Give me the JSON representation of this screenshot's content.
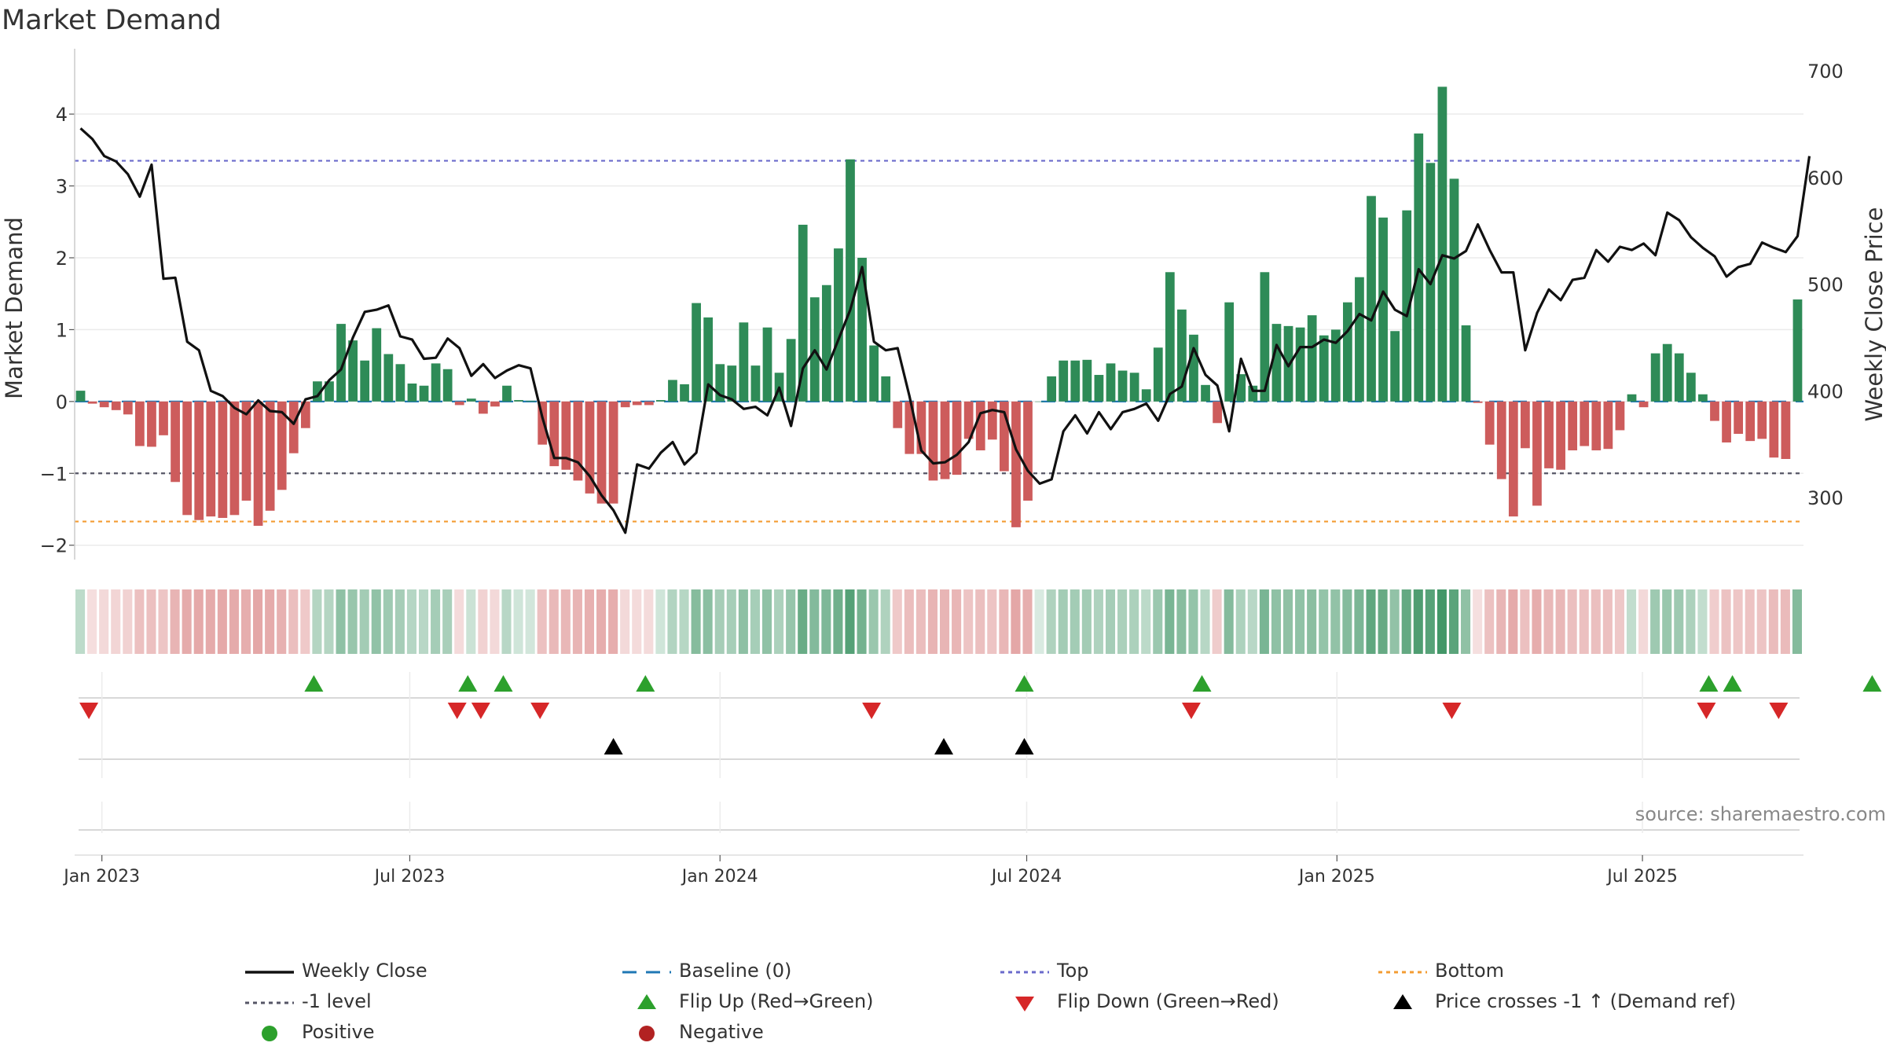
{
  "title": "Market Demand",
  "source_text": "source: sharemaestro.com",
  "colors": {
    "positive_bar": "#2e8b57",
    "negative_bar": "#cd5c5c",
    "price_line": "#111111",
    "baseline": "#1f77b4",
    "top": "#6a6acb",
    "bottom": "#f39c33",
    "minus1": "#555566",
    "flip_up": "#2ca02c",
    "flip_down": "#d62728",
    "cross": "#000000",
    "positive_dot": "#2ca02c",
    "negative_dot": "#b22222"
  },
  "chart_data": {
    "type": "bar",
    "title": "Market Demand",
    "ylabel_left": "Market Demand",
    "ylabel_right": "Weekly Close Price",
    "ylim_left": [
      -2.2,
      4.8
    ],
    "ylim_right": [
      234,
      700
    ],
    "yticks_left": [
      "4",
      "3",
      "2",
      "1",
      "0",
      "−1",
      "−2"
    ],
    "yticks_left_values": [
      4,
      3,
      2,
      1,
      0,
      -1,
      -2
    ],
    "yticks_right": [
      "700",
      "600",
      "500",
      "400",
      "300"
    ],
    "yticks_right_values": [
      700,
      600,
      500,
      400,
      300
    ],
    "xtick_labels": [
      "Jan 2023",
      "Jul 2023",
      "Jan 2024",
      "Jul 2024",
      "Jan 2025",
      "Jul 2025"
    ],
    "xtick_weeks": [
      2.3,
      28.3,
      54.5,
      80.4,
      106.6,
      132.4
    ],
    "start_week_label": "2022-12-23",
    "reference_lines": {
      "top": 3.35,
      "minus1": -1.0,
      "bottom": -1.67,
      "baseline": 0
    },
    "demand": [
      0.15,
      -0.03,
      -0.08,
      -0.12,
      -0.18,
      -0.62,
      -0.63,
      -0.47,
      -1.12,
      -1.58,
      -1.65,
      -1.6,
      -1.62,
      -1.58,
      -1.38,
      -1.73,
      -1.52,
      -1.23,
      -0.72,
      -0.37,
      0.28,
      0.28,
      1.08,
      0.85,
      0.57,
      1.02,
      0.66,
      0.52,
      0.25,
      0.22,
      0.53,
      0.45,
      -0.05,
      0.04,
      -0.17,
      -0.07,
      0.22,
      0.02,
      0.01,
      -0.6,
      -0.9,
      -0.95,
      -1.1,
      -1.28,
      -1.42,
      -1.42,
      -0.08,
      -0.05,
      -0.05,
      0.02,
      0.3,
      0.24,
      1.37,
      1.17,
      0.52,
      0.5,
      1.1,
      0.5,
      1.03,
      0.4,
      0.87,
      2.46,
      1.45,
      1.62,
      2.13,
      3.37,
      2.0,
      0.78,
      0.35,
      -0.37,
      -0.73,
      -0.73,
      -1.1,
      -1.08,
      -1.02,
      -0.52,
      -0.68,
      -0.53,
      -0.97,
      -1.75,
      -1.38,
      0.0,
      0.35,
      0.57,
      0.57,
      0.58,
      0.37,
      0.53,
      0.43,
      0.4,
      0.17,
      0.75,
      1.8,
      1.28,
      0.93,
      0.23,
      -0.3,
      1.38,
      0.38,
      0.22,
      1.8,
      1.08,
      1.05,
      1.03,
      1.2,
      0.92,
      1.0,
      1.38,
      1.73,
      2.86,
      2.56,
      0.98,
      2.66,
      3.73,
      3.32,
      4.38,
      3.1,
      1.06,
      -0.02,
      -0.6,
      -1.08,
      -1.6,
      -0.65,
      -1.45,
      -0.93,
      -0.95,
      -0.68,
      -0.62,
      -0.68,
      -0.66,
      -0.4,
      0.1,
      -0.08,
      0.67,
      0.8,
      0.67,
      0.4,
      0.1,
      -0.27,
      -0.57,
      -0.45,
      -0.55,
      -0.52,
      -0.78,
      -0.8,
      1.42
    ],
    "weekly_close": [
      646,
      636,
      620,
      615,
      603,
      582,
      612,
      505,
      506,
      446,
      438,
      400,
      395,
      384,
      378,
      391,
      381,
      380,
      369,
      392,
      395,
      410,
      420,
      450,
      474,
      476,
      480,
      451,
      448,
      430,
      431,
      449,
      440,
      414,
      425,
      412,
      419,
      424,
      421,
      375,
      337,
      337,
      333,
      320,
      302,
      288,
      267,
      331,
      327,
      342,
      352,
      331,
      342,
      406,
      396,
      392,
      383,
      385,
      377,
      403,
      367,
      421,
      438,
      420,
      448,
      476,
      516,
      446,
      438,
      440,
      395,
      344,
      332,
      333,
      340,
      352,
      379,
      382,
      380,
      345,
      325,
      313,
      317,
      362,
      377,
      360,
      380,
      364,
      380,
      383,
      388,
      372,
      397,
      404,
      440,
      415,
      405,
      362,
      430,
      400,
      400,
      443,
      423,
      441,
      441,
      448,
      445,
      456,
      472,
      466,
      493,
      476,
      470,
      514,
      500,
      527,
      524,
      531,
      556,
      532,
      511,
      511,
      438,
      473,
      495,
      485,
      504,
      506,
      532,
      521,
      535,
      532,
      538,
      527,
      567,
      560,
      544,
      534,
      526,
      507,
      516,
      519,
      539,
      534,
      530,
      545,
      620
    ],
    "tile_shades": [
      0.15,
      -0.03,
      -0.08,
      -0.12,
      -0.18,
      -0.62,
      -0.63,
      -0.47,
      -1.12,
      -1.58,
      -1.65,
      -1.6,
      -1.62,
      -1.58,
      -1.38,
      -1.73,
      -1.52,
      -1.23,
      -0.72,
      -0.37,
      0.28,
      0.28,
      1.08,
      0.85,
      0.57,
      1.02,
      0.66,
      0.52,
      0.25,
      0.22,
      0.53,
      0.45,
      -0.05,
      0.04,
      -0.17,
      -0.07,
      0.22,
      0.02,
      0.01,
      -0.6,
      -0.9,
      -0.95,
      -1.1,
      -1.28,
      -1.42,
      -1.42,
      -0.08,
      -0.05,
      -0.05,
      0.02,
      0.3,
      0.24,
      1.37,
      1.17,
      0.52,
      0.5,
      1.1,
      0.5,
      1.03,
      0.4,
      0.87,
      2.46,
      1.45,
      1.62,
      2.13,
      3.37,
      2.0,
      0.78,
      0.35,
      -0.37,
      -0.73,
      -0.73,
      -1.1,
      -1.08,
      -1.02,
      -0.52,
      -0.68,
      -0.53,
      -0.97,
      -1.75,
      -1.38,
      0.0,
      0.35,
      0.57,
      0.57,
      0.58,
      0.37,
      0.53,
      0.43,
      0.4,
      0.17,
      0.75,
      1.8,
      1.28,
      0.93,
      0.23,
      -0.3,
      1.38,
      0.38,
      0.22,
      1.8,
      1.08,
      1.05,
      1.03,
      1.2,
      0.92,
      1.0,
      1.38,
      1.73,
      2.86,
      2.56,
      0.98,
      2.66,
      3.73,
      3.32,
      4.38,
      3.1,
      1.06,
      -0.02,
      -0.6,
      -1.08,
      -1.6,
      -0.65,
      -1.45,
      -0.93,
      -0.95,
      -0.68,
      -0.62,
      -0.68,
      -0.66,
      -0.4,
      0.1,
      -0.08,
      0.67,
      0.8,
      0.67,
      0.4,
      0.1,
      -0.27,
      -0.57,
      -0.45,
      -0.55,
      -0.52,
      -0.78,
      -0.8,
      1.42
    ],
    "flip_up_weeks": [
      20.2,
      33.2,
      36.2,
      48.2,
      80.2,
      95.2,
      138.0,
      140.0,
      151.8
    ],
    "flip_down_weeks": [
      1.2,
      32.3,
      34.3,
      39.3,
      67.3,
      94.3,
      116.3,
      137.8,
      143.9
    ],
    "price_cross_weeks": [
      45.5,
      73.4,
      80.2
    ],
    "legend": [
      {
        "label": "Weekly Close",
        "kind": "line-solid",
        "color_key": "price_line"
      },
      {
        "label": "Baseline (0)",
        "kind": "line-dash",
        "color_key": "baseline"
      },
      {
        "label": "Top",
        "kind": "line-dot",
        "color_key": "top"
      },
      {
        "label": "Bottom",
        "kind": "line-dot",
        "color_key": "bottom"
      },
      {
        "label": "-1 level",
        "kind": "line-dot",
        "color_key": "minus1"
      },
      {
        "label": "Flip Up (Red→Green)",
        "kind": "tri-up",
        "color_key": "flip_up"
      },
      {
        "label": "Flip Down (Green→Red)",
        "kind": "tri-down",
        "color_key": "flip_down"
      },
      {
        "label": "Price crosses -1 ↑ (Demand ref)",
        "kind": "tri-up",
        "color_key": "cross"
      },
      {
        "label": "Positive",
        "kind": "dot",
        "color_key": "positive_dot"
      },
      {
        "label": "Negative",
        "kind": "dot",
        "color_key": "negative_dot"
      }
    ]
  }
}
